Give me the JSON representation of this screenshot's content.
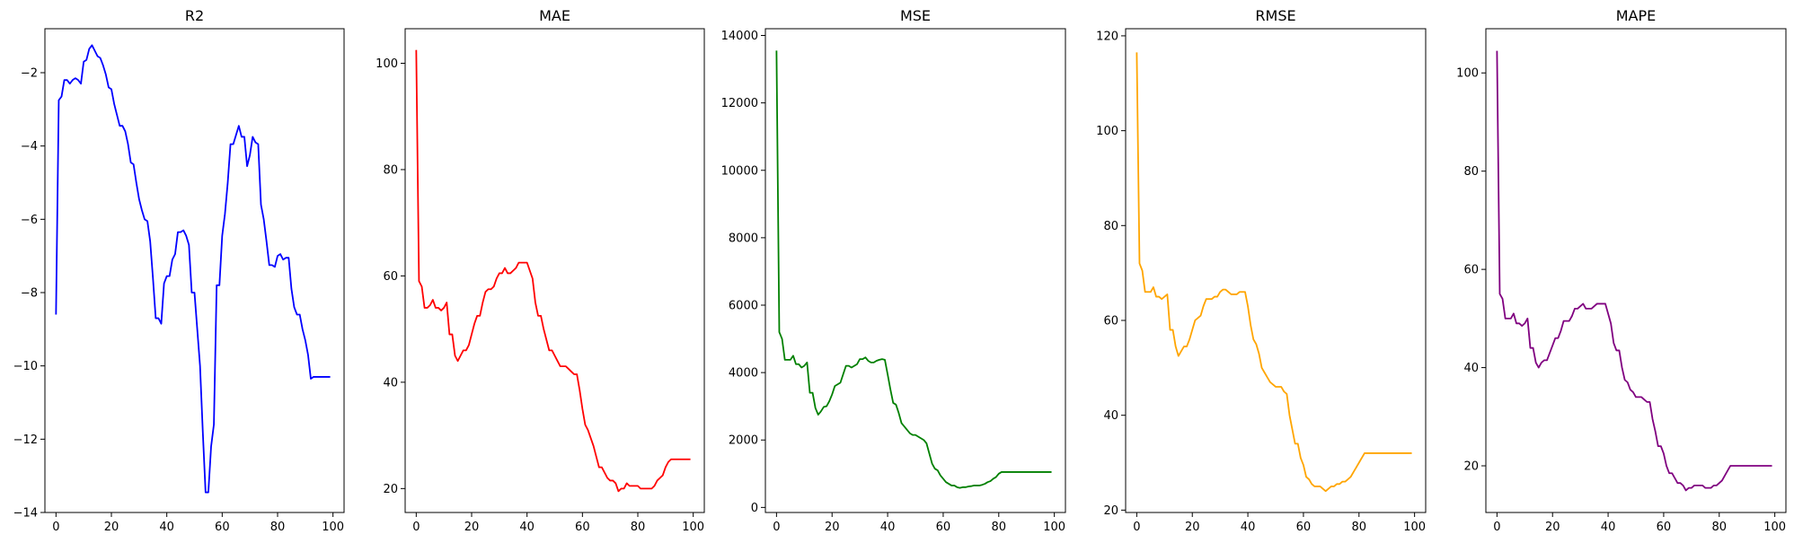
{
  "chart_data": [
    {
      "type": "line",
      "title": "R2",
      "xlabel": "",
      "ylabel": "",
      "color": "#0000ff",
      "xlim": [
        -4,
        104
      ],
      "ylim": [
        -14,
        -0.8
      ],
      "xticks": [
        0,
        20,
        40,
        60,
        80,
        100
      ],
      "yticks": [
        -14,
        -12,
        -10,
        -8,
        -6,
        -4,
        -2
      ],
      "x": [
        0,
        1,
        2,
        3,
        4,
        5,
        6,
        7,
        8,
        9,
        10,
        11,
        12,
        13,
        14,
        15,
        16,
        17,
        18,
        19,
        20,
        21,
        22,
        23,
        24,
        25,
        26,
        27,
        28,
        29,
        30,
        31,
        32,
        33,
        34,
        35,
        36,
        37,
        38,
        39,
        40,
        41,
        42,
        43,
        44,
        45,
        46,
        47,
        48,
        49,
        50,
        51,
        52,
        53,
        54,
        55,
        56,
        57,
        58,
        59,
        60,
        61,
        62,
        63,
        64,
        65,
        66,
        67,
        68,
        69,
        70,
        71,
        72,
        73,
        74,
        75,
        76,
        77,
        78,
        79,
        80,
        81,
        82,
        83,
        84,
        85,
        86,
        87,
        88,
        89,
        90,
        91,
        92,
        93,
        94,
        95,
        96,
        97,
        98,
        99
      ],
      "y": [
        -8.6,
        -2.75,
        -2.65,
        -2.2,
        -2.2,
        -2.3,
        -2.2,
        -2.15,
        -2.2,
        -2.3,
        -1.7,
        -1.65,
        -1.35,
        -1.25,
        -1.4,
        -1.55,
        -1.6,
        -1.8,
        -2.05,
        -2.4,
        -2.45,
        -2.85,
        -3.15,
        -3.45,
        -3.45,
        -3.6,
        -3.95,
        -4.45,
        -4.5,
        -5.0,
        -5.45,
        -5.75,
        -6.0,
        -6.05,
        -6.6,
        -7.6,
        -8.7,
        -8.7,
        -8.85,
        -7.75,
        -7.55,
        -7.55,
        -7.1,
        -6.95,
        -6.35,
        -6.35,
        -6.3,
        -6.45,
        -6.7,
        -8.0,
        -8.0,
        -9.0,
        -10.0,
        -11.8,
        -13.45,
        -13.45,
        -12.2,
        -11.6,
        -7.8,
        -7.8,
        -6.45,
        -5.85,
        -5.0,
        -3.95,
        -3.95,
        -3.7,
        -3.45,
        -3.75,
        -3.75,
        -4.55,
        -4.25,
        -3.75,
        -3.9,
        -3.95,
        -5.6,
        -6.0,
        -6.6,
        -7.25,
        -7.25,
        -7.3,
        -7.0,
        -6.95,
        -7.1,
        -7.05,
        -7.05,
        -7.9,
        -8.4,
        -8.6,
        -8.6,
        -9.0,
        -9.3,
        -9.7,
        -10.35,
        -10.3,
        -10.3,
        -10.3,
        -10.3,
        -10.3,
        -10.3,
        -10.3
      ]
    },
    {
      "type": "line",
      "title": "MAE",
      "xlabel": "",
      "ylabel": "",
      "color": "#ff0000",
      "xlim": [
        -4,
        104
      ],
      "ylim": [
        15.5,
        106.5
      ],
      "xticks": [
        0,
        20,
        40,
        60,
        80,
        100
      ],
      "yticks": [
        20,
        40,
        60,
        80,
        100
      ],
      "x": [
        0,
        1,
        2,
        3,
        4,
        5,
        6,
        7,
        8,
        9,
        10,
        11,
        12,
        13,
        14,
        15,
        16,
        17,
        18,
        19,
        20,
        21,
        22,
        23,
        24,
        25,
        26,
        27,
        28,
        29,
        30,
        31,
        32,
        33,
        34,
        35,
        36,
        37,
        38,
        39,
        40,
        41,
        42,
        43,
        44,
        45,
        46,
        47,
        48,
        49,
        50,
        51,
        52,
        53,
        54,
        55,
        56,
        57,
        58,
        59,
        60,
        61,
        62,
        63,
        64,
        65,
        66,
        67,
        68,
        69,
        70,
        71,
        72,
        73,
        74,
        75,
        76,
        77,
        78,
        79,
        80,
        81,
        82,
        83,
        84,
        85,
        86,
        87,
        88,
        89,
        90,
        91,
        92,
        93,
        94,
        95,
        96,
        97,
        98,
        99
      ],
      "y": [
        102.5,
        59.0,
        58.0,
        54.0,
        54.0,
        54.5,
        55.5,
        54.0,
        54.0,
        53.5,
        54.0,
        55.0,
        49.0,
        49.0,
        45.0,
        44.0,
        45.0,
        46.0,
        46.0,
        47.0,
        49.0,
        51.0,
        52.5,
        52.5,
        55.0,
        57.0,
        57.5,
        57.5,
        58.0,
        59.5,
        60.5,
        60.5,
        61.5,
        60.5,
        60.5,
        61.0,
        61.5,
        62.5,
        62.5,
        62.5,
        62.5,
        61.0,
        59.5,
        55.0,
        52.5,
        52.5,
        50.0,
        48.0,
        46.0,
        46.0,
        45.0,
        44.0,
        43.0,
        43.0,
        43.0,
        42.5,
        42.0,
        41.5,
        41.5,
        38.5,
        35.0,
        32.0,
        31.0,
        29.5,
        28.0,
        26.0,
        24.0,
        24.0,
        23.0,
        22.0,
        21.5,
        21.5,
        21.0,
        19.5,
        20.0,
        20.0,
        21.0,
        20.5,
        20.5,
        20.5,
        20.5,
        20.0,
        20.0,
        20.0,
        20.0,
        20.0,
        20.5,
        21.5,
        22.0,
        22.5,
        24.0,
        25.0,
        25.5,
        25.5,
        25.5,
        25.5,
        25.5,
        25.5,
        25.5,
        25.5
      ]
    },
    {
      "type": "line",
      "title": "MSE",
      "xlabel": "",
      "ylabel": "",
      "color": "#008000",
      "xlim": [
        -4,
        104
      ],
      "ylim": [
        -150,
        14200
      ],
      "xticks": [
        0,
        20,
        40,
        60,
        80,
        100
      ],
      "yticks": [
        0,
        2000,
        4000,
        6000,
        8000,
        10000,
        12000,
        14000
      ],
      "x": [
        0,
        1,
        2,
        3,
        4,
        5,
        6,
        7,
        8,
        9,
        10,
        11,
        12,
        13,
        14,
        15,
        16,
        17,
        18,
        19,
        20,
        21,
        22,
        23,
        24,
        25,
        26,
        27,
        28,
        29,
        30,
        31,
        32,
        33,
        34,
        35,
        36,
        37,
        38,
        39,
        40,
        41,
        42,
        43,
        44,
        45,
        46,
        47,
        48,
        49,
        50,
        51,
        52,
        53,
        54,
        55,
        56,
        57,
        58,
        59,
        60,
        61,
        62,
        63,
        64,
        65,
        66,
        67,
        68,
        69,
        70,
        71,
        72,
        73,
        74,
        75,
        76,
        77,
        78,
        79,
        80,
        81,
        82,
        83,
        84,
        85,
        86,
        87,
        88,
        89,
        90,
        91,
        92,
        93,
        94,
        95,
        96,
        97,
        98,
        99
      ],
      "y": [
        13550,
        5200,
        5000,
        4380,
        4380,
        4380,
        4500,
        4250,
        4250,
        4150,
        4200,
        4300,
        3400,
        3400,
        2950,
        2750,
        2850,
        2980,
        3000,
        3150,
        3350,
        3600,
        3650,
        3700,
        3950,
        4200,
        4200,
        4150,
        4200,
        4250,
        4400,
        4400,
        4450,
        4350,
        4300,
        4300,
        4350,
        4380,
        4400,
        4380,
        3950,
        3500,
        3100,
        3050,
        2800,
        2500,
        2400,
        2300,
        2200,
        2150,
        2150,
        2100,
        2050,
        2000,
        1900,
        1600,
        1300,
        1150,
        1100,
        950,
        850,
        750,
        700,
        650,
        650,
        600,
        580,
        600,
        600,
        620,
        630,
        650,
        650,
        650,
        670,
        700,
        750,
        780,
        850,
        900,
        1000,
        1050,
        1050,
        1050,
        1050,
        1050,
        1050,
        1050,
        1050,
        1050,
        1050,
        1050,
        1050,
        1050,
        1050,
        1050,
        1050,
        1050,
        1050,
        1050
      ]
    },
    {
      "type": "line",
      "title": "RMSE",
      "xlabel": "",
      "ylabel": "",
      "color": "#ffa500",
      "xlim": [
        -4,
        104
      ],
      "ylim": [
        19.5,
        121.5
      ],
      "xticks": [
        0,
        20,
        40,
        60,
        80,
        100
      ],
      "yticks": [
        20,
        40,
        60,
        80,
        100,
        120
      ],
      "x": [
        0,
        1,
        2,
        3,
        4,
        5,
        6,
        7,
        8,
        9,
        10,
        11,
        12,
        13,
        14,
        15,
        16,
        17,
        18,
        19,
        20,
        21,
        22,
        23,
        24,
        25,
        26,
        27,
        28,
        29,
        30,
        31,
        32,
        33,
        34,
        35,
        36,
        37,
        38,
        39,
        40,
        41,
        42,
        43,
        44,
        45,
        46,
        47,
        48,
        49,
        50,
        51,
        52,
        53,
        54,
        55,
        56,
        57,
        58,
        59,
        60,
        61,
        62,
        63,
        64,
        65,
        66,
        67,
        68,
        69,
        70,
        71,
        72,
        73,
        74,
        75,
        76,
        77,
        78,
        79,
        80,
        81,
        82,
        83,
        84,
        85,
        86,
        87,
        88,
        89,
        90,
        91,
        92,
        93,
        94,
        95,
        96,
        97,
        98,
        99
      ],
      "y": [
        116.5,
        72.0,
        70.5,
        66.0,
        66.0,
        66.0,
        67.0,
        65.0,
        65.0,
        64.5,
        65.0,
        65.5,
        58.0,
        58.0,
        54.5,
        52.5,
        53.5,
        54.5,
        54.5,
        56.0,
        58.0,
        60.0,
        60.5,
        61.0,
        63.0,
        64.5,
        64.5,
        64.5,
        65.0,
        65.0,
        66.0,
        66.5,
        66.5,
        66.0,
        65.5,
        65.5,
        65.5,
        66.0,
        66.0,
        66.0,
        63.0,
        59.0,
        56.0,
        55.0,
        53.0,
        50.0,
        49.0,
        48.0,
        47.0,
        46.5,
        46.0,
        46.0,
        46.0,
        45.0,
        44.5,
        40.0,
        37.0,
        34.0,
        34.0,
        31.0,
        29.5,
        27.0,
        26.5,
        25.5,
        25.0,
        25.0,
        25.0,
        24.5,
        24.0,
        24.5,
        25.0,
        25.0,
        25.5,
        25.5,
        26.0,
        26.0,
        26.5,
        27.0,
        28.0,
        29.0,
        30.0,
        31.0,
        32.0,
        32.0,
        32.0,
        32.0,
        32.0,
        32.0,
        32.0,
        32.0,
        32.0,
        32.0,
        32.0,
        32.0,
        32.0,
        32.0,
        32.0,
        32.0,
        32.0,
        32.0
      ]
    },
    {
      "type": "line",
      "title": "MAPE",
      "xlabel": "",
      "ylabel": "",
      "color": "#800080",
      "xlim": [
        -4,
        104
      ],
      "ylim": [
        10.5,
        109
      ],
      "xticks": [
        0,
        20,
        40,
        60,
        80,
        100
      ],
      "yticks": [
        20,
        40,
        60,
        80,
        100
      ],
      "x": [
        0,
        1,
        2,
        3,
        4,
        5,
        6,
        7,
        8,
        9,
        10,
        11,
        12,
        13,
        14,
        15,
        16,
        17,
        18,
        19,
        20,
        21,
        22,
        23,
        24,
        25,
        26,
        27,
        28,
        29,
        30,
        31,
        32,
        33,
        34,
        35,
        36,
        37,
        38,
        39,
        40,
        41,
        42,
        43,
        44,
        45,
        46,
        47,
        48,
        49,
        50,
        51,
        52,
        53,
        54,
        55,
        56,
        57,
        58,
        59,
        60,
        61,
        62,
        63,
        64,
        65,
        66,
        67,
        68,
        69,
        70,
        71,
        72,
        73,
        74,
        75,
        76,
        77,
        78,
        79,
        80,
        81,
        82,
        83,
        84,
        85,
        86,
        87,
        88,
        89,
        90,
        91,
        92,
        93,
        94,
        95,
        96,
        97,
        98,
        99
      ],
      "y": [
        104.5,
        55.0,
        54.0,
        50.0,
        50.0,
        50.0,
        51.0,
        49.0,
        49.0,
        48.5,
        49.0,
        50.0,
        44.0,
        44.0,
        41.0,
        40.0,
        41.0,
        41.5,
        41.5,
        43.0,
        44.5,
        46.0,
        46.0,
        47.5,
        49.5,
        49.5,
        49.5,
        50.5,
        52.0,
        52.0,
        52.5,
        53.0,
        52.0,
        52.0,
        52.0,
        52.5,
        53.0,
        53.0,
        53.0,
        53.0,
        51.0,
        49.0,
        45.0,
        43.5,
        43.5,
        40.0,
        37.5,
        37.0,
        35.5,
        35.0,
        34.0,
        34.0,
        34.0,
        33.5,
        33.0,
        33.0,
        29.5,
        27.0,
        24.0,
        24.0,
        22.5,
        20.0,
        18.5,
        18.5,
        17.5,
        16.5,
        16.5,
        16.0,
        15.0,
        15.5,
        15.5,
        16.0,
        16.0,
        16.0,
        16.0,
        15.5,
        15.5,
        15.5,
        16.0,
        16.0,
        16.5,
        17.0,
        18.0,
        19.0,
        20.0,
        20.0,
        20.0,
        20.0,
        20.0,
        20.0,
        20.0,
        20.0,
        20.0,
        20.0,
        20.0,
        20.0,
        20.0,
        20.0,
        20.0,
        20.0
      ]
    }
  ]
}
